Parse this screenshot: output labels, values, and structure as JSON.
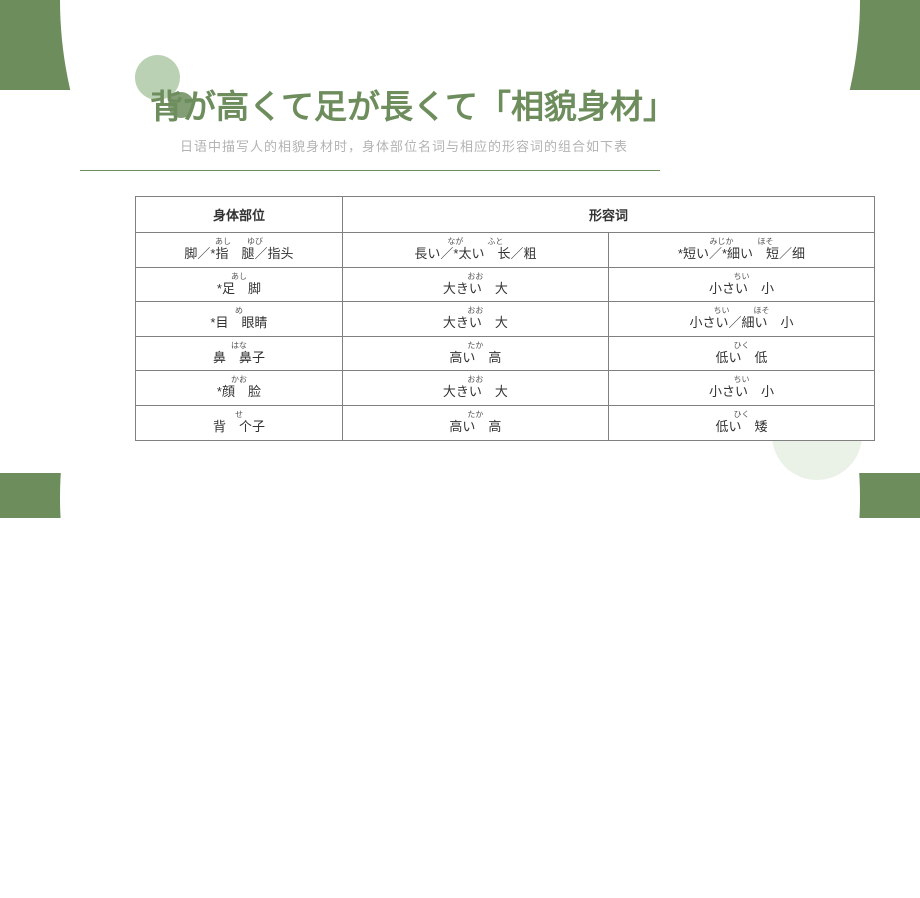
{
  "colors": {
    "primary_green": "#6d8d5d",
    "light_green": "#a4c199",
    "pale_green": "#e5ede0",
    "subtitle_gray": "#b3b3b3",
    "border_gray": "#808080",
    "text": "#333333",
    "background": "#ffffff"
  },
  "typography": {
    "title_fontsize": 33,
    "subtitle_fontsize": 13,
    "table_fontsize": 13,
    "ruby_fontsize": 8
  },
  "title": "背が高くて足が長くて「相貌身材」",
  "subtitle": "日语中描写人的相貌身材时，身体部位名词与相应的形容词的组合如下表",
  "table": {
    "headers": {
      "body_part": "身体部位",
      "adjective": "形容词"
    },
    "rows": [
      {
        "body_ruby": "あし　　ゆび",
        "body": "脚／*指　腿／指头",
        "adj1_ruby": "なが　　　ふと",
        "adj1": "長い／*太い　长／粗",
        "adj2_ruby": "みじか　　　ほそ",
        "adj2": "*短い／*細い　短／细"
      },
      {
        "body_ruby": "あし",
        "body": "*足　脚",
        "adj1_ruby": "おお",
        "adj1": "大きい　大",
        "adj2_ruby": "ちい",
        "adj2": "小さい　小"
      },
      {
        "body_ruby": "め",
        "body": "*目　眼睛",
        "adj1_ruby": "おお",
        "adj1": "大きい　大",
        "adj2_ruby": "ちい　　　ほそ",
        "adj2": "小さい／細い　小"
      },
      {
        "body_ruby": "はな",
        "body": "鼻　鼻子",
        "adj1_ruby": "たか",
        "adj1": "高い　高",
        "adj2_ruby": "ひく",
        "adj2": "低い　低"
      },
      {
        "body_ruby": "かお",
        "body": "*顔　脸",
        "adj1_ruby": "おお",
        "adj1": "大きい　大",
        "adj2_ruby": "ちい",
        "adj2": "小さい　小"
      },
      {
        "body_ruby": "せ",
        "body": "背　个子",
        "adj1_ruby": "たか",
        "adj1": "高い　高",
        "adj2_ruby": "ひく",
        "adj2": "低い　矮"
      }
    ]
  }
}
